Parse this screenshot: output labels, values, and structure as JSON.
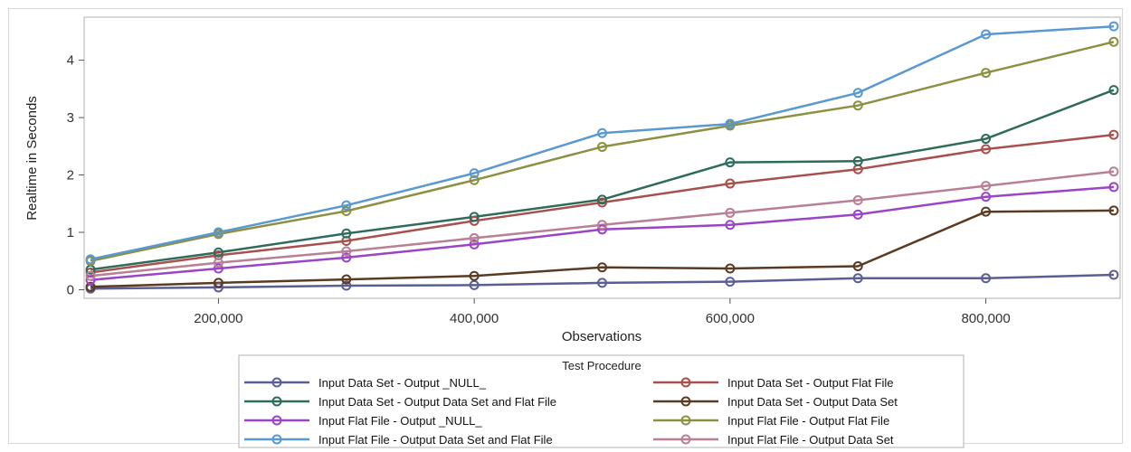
{
  "chart_data": {
    "type": "line",
    "xlabel": "Observations",
    "ylabel": "Realtime in Seconds",
    "xlim": [
      95000,
      905000
    ],
    "ylim": [
      -0.15,
      4.75
    ],
    "x_ticks": [
      200000,
      400000,
      600000,
      800000
    ],
    "x_tick_labels": [
      "200,000",
      "400,000",
      "600,000",
      "800,000"
    ],
    "y_ticks": [
      0,
      1,
      2,
      3,
      4
    ],
    "y_tick_labels": [
      "0",
      "1",
      "2",
      "3",
      "4"
    ],
    "grid": false,
    "legend_title": "Test Procedure",
    "legend_position": "bottom",
    "x": [
      100000,
      200000,
      300000,
      400000,
      500000,
      600000,
      700000,
      800000,
      900000
    ],
    "series": [
      {
        "name": "Input Data Set - Output _NULL_",
        "color": "#5a5f92",
        "values": [
          0.02,
          0.04,
          0.07,
          0.08,
          0.12,
          0.14,
          0.2,
          0.2,
          0.26
        ]
      },
      {
        "name": "Input Data Set - Output Flat File",
        "color": "#a8504d",
        "values": [
          0.3,
          0.6,
          0.85,
          1.2,
          1.52,
          1.85,
          2.1,
          2.45,
          2.7
        ]
      },
      {
        "name": "Input Data Set - Output Data Set and Flat File",
        "color": "#2e6b5b",
        "values": [
          0.35,
          0.65,
          0.98,
          1.27,
          1.57,
          2.22,
          2.24,
          2.63,
          3.48
        ]
      },
      {
        "name": "Input Data Set - Output Data Set",
        "color": "#5a3a22",
        "values": [
          0.05,
          0.12,
          0.18,
          0.24,
          0.39,
          0.37,
          0.41,
          1.36,
          1.38
        ]
      },
      {
        "name": "Input Flat File - Output _NULL_",
        "color": "#9a45c7",
        "values": [
          0.17,
          0.37,
          0.56,
          0.79,
          1.05,
          1.13,
          1.31,
          1.62,
          1.79
        ]
      },
      {
        "name": "Input Flat File - Output Flat File",
        "color": "#8c9043",
        "values": [
          0.5,
          0.97,
          1.37,
          1.91,
          2.49,
          2.86,
          3.21,
          3.78,
          4.32
        ]
      },
      {
        "name": "Input Flat File - Output Data Set and Flat File",
        "color": "#5a98d0",
        "values": [
          0.53,
          1.0,
          1.47,
          2.03,
          2.73,
          2.89,
          3.43,
          4.45,
          4.59
        ]
      },
      {
        "name": "Input Flat File - Output Data Set",
        "color": "#b97f96",
        "values": [
          0.24,
          0.47,
          0.67,
          0.9,
          1.13,
          1.34,
          1.56,
          1.81,
          2.06
        ]
      }
    ]
  }
}
